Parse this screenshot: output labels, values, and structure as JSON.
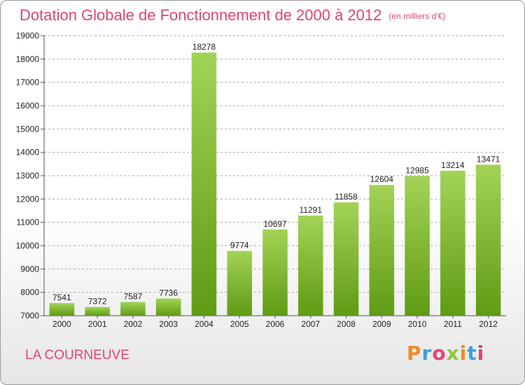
{
  "header": {
    "title": "Dotation Globale de Fonctionnement de 2000 à 2012",
    "subtitle": "(en milliers d'€)"
  },
  "footer": {
    "city": "LA COURNEUVE",
    "logo_text": "Proxiti"
  },
  "colors": {
    "title": "#e0456e",
    "bar_light": "#a3d356",
    "bar_dark": "#5f9b14",
    "grid": "#aaaaaa",
    "logo": [
      "#f08a24",
      "#3aa2d8",
      "#e0456e",
      "#8cc63f",
      "#f08a24",
      "#3aa2d8",
      "#e0456e"
    ]
  },
  "chart_data": {
    "type": "bar",
    "title": "Dotation Globale de Fonctionnement de 2000 à 2012",
    "subtitle": "(en milliers d'€)",
    "categories": [
      "2000",
      "2001",
      "2002",
      "2003",
      "2004",
      "2005",
      "2006",
      "2007",
      "2008",
      "2009",
      "2010",
      "2011",
      "2012"
    ],
    "values": [
      7541,
      7372,
      7587,
      7736,
      18278,
      9774,
      10697,
      11291,
      11858,
      12604,
      12985,
      13214,
      13471
    ],
    "ylim": [
      7000,
      19000
    ],
    "yticks": [
      7000,
      8000,
      9000,
      10000,
      11000,
      12000,
      13000,
      14000,
      15000,
      16000,
      17000,
      18000,
      19000
    ],
    "grid": "horizontal dashed",
    "xlabel": "",
    "ylabel": ""
  }
}
